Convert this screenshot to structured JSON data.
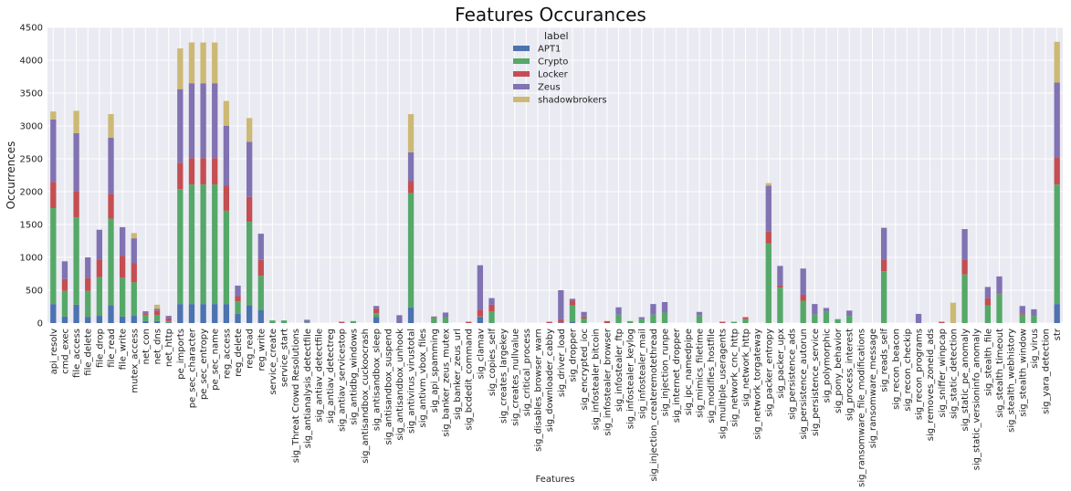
{
  "chart_data": {
    "type": "bar",
    "stacked": true,
    "title": "Features Occurances",
    "xlabel": "Features",
    "ylabel": "Occurrences",
    "ylim": [
      0,
      4500
    ],
    "yticks": [
      0,
      500,
      1000,
      1500,
      2000,
      2500,
      3000,
      3500,
      4000,
      4500
    ],
    "grid": true,
    "legend_title": "label",
    "legend_position": "upper-center",
    "categories": [
      "api_resolv",
      "cmd_exec",
      "file_access",
      "file_delete",
      "file_drop",
      "file_read",
      "file_write",
      "mutex_access",
      "net_con",
      "net_dns",
      "net_http",
      "pe_imports",
      "pe_sec_character",
      "pe_sec_entropy",
      "pe_sec_name",
      "reg_access",
      "reg_delete",
      "reg_read",
      "reg_write",
      "service_create",
      "service_start",
      "sig_Threat Crowd Resolutions",
      "sig_antianalysis_detectfile",
      "sig_antiav_detectfile",
      "sig_antiav_detectreg",
      "sig_antiav_servicestop",
      "sig_antidbg_windows",
      "sig_antisandbox_cuckoocrash",
      "sig_antisandbox_sleep",
      "sig_antisandbox_suspend",
      "sig_antisandbox_unhook",
      "sig_antivirus_virustotal",
      "sig_antivm_vbox_files",
      "sig_api_spamming",
      "sig_banker_zeus_mutex",
      "sig_banker_zeus_url",
      "sig_bcdedit_command",
      "sig_clamav",
      "sig_copies_self",
      "sig_creates_largekey",
      "sig_creates_nullvalue",
      "sig_critical_process",
      "sig_disables_browser_warn",
      "sig_downloader_cabby",
      "sig_driver_load",
      "sig_dropper",
      "sig_encrypted_ioc",
      "sig_infostealer_bitcoin",
      "sig_infostealer_browser",
      "sig_infostealer_ftp",
      "sig_infostealer_keylog",
      "sig_infostealer_mail",
      "sig_injection_createremotethread",
      "sig_injection_runpe",
      "sig_internet_dropper",
      "sig_ipc_namedpipe",
      "sig_mimics_filetime",
      "sig_modifies_hostfile",
      "sig_multiple_useragents",
      "sig_network_cnc_http",
      "sig_network_http",
      "sig_network_torgateway",
      "sig_packer_entropy",
      "sig_packer_upx",
      "sig_persistence_ads",
      "sig_persistence_autorun",
      "sig_persistence_service",
      "sig_polymorphic",
      "sig_pony_behavior",
      "sig_process_interest",
      "sig_ransomware_file_modifications",
      "sig_ransomware_message",
      "sig_reads_self",
      "sig_recon_beacon",
      "sig_recon_checkip",
      "sig_recon_programs",
      "sig_removes_zoneid_ads",
      "sig_sniffer_winpcap",
      "sig_static_detection",
      "sig_static_pe_anomaly",
      "sig_static_versioninfo_anomaly",
      "sig_stealth_file",
      "sig_stealth_timeout",
      "sig_stealth_webhistory",
      "sig_stealth_window",
      "sig_virus",
      "sig_yara_detection",
      "str"
    ],
    "series": [
      {
        "name": "APT1",
        "color": "#4c72b0",
        "values": [
          290,
          100,
          280,
          90,
          110,
          270,
          100,
          110,
          30,
          30,
          10,
          290,
          290,
          290,
          290,
          290,
          140,
          270,
          200,
          0,
          0,
          0,
          0,
          0,
          0,
          0,
          0,
          0,
          90,
          0,
          0,
          240,
          0,
          0,
          0,
          0,
          0,
          90,
          0,
          0,
          0,
          0,
          0,
          0,
          10,
          20,
          0,
          0,
          0,
          0,
          0,
          0,
          0,
          0,
          0,
          0,
          0,
          0,
          0,
          0,
          0,
          0,
          0,
          0,
          0,
          0,
          0,
          0,
          0,
          0,
          0,
          0,
          0,
          0,
          0,
          0,
          0,
          0,
          0,
          0,
          0,
          0,
          0,
          0,
          0,
          0,
          0,
          290
        ]
      },
      {
        "name": "Crypto",
        "color": "#55a868",
        "values": [
          1460,
          390,
          1330,
          400,
          590,
          1320,
          590,
          510,
          90,
          90,
          20,
          1750,
          1820,
          1820,
          1820,
          1420,
          190,
          1270,
          520,
          40,
          40,
          0,
          10,
          0,
          0,
          0,
          30,
          0,
          60,
          0,
          0,
          1740,
          0,
          80,
          90,
          0,
          0,
          10,
          180,
          0,
          0,
          0,
          0,
          0,
          0,
          250,
          70,
          0,
          0,
          130,
          30,
          60,
          130,
          160,
          0,
          0,
          120,
          0,
          0,
          20,
          60,
          0,
          1210,
          540,
          0,
          340,
          130,
          170,
          60,
          110,
          0,
          0,
          790,
          0,
          0,
          0,
          0,
          0,
          0,
          740,
          0,
          270,
          440,
          0,
          130,
          110,
          0,
          1820
        ]
      },
      {
        "name": "Locker",
        "color": "#c44e52",
        "values": [
          400,
          180,
          400,
          200,
          270,
          380,
          330,
          290,
          30,
          70,
          40,
          400,
          400,
          400,
          400,
          380,
          80,
          380,
          240,
          0,
          0,
          0,
          0,
          0,
          0,
          20,
          0,
          0,
          70,
          0,
          0,
          180,
          0,
          10,
          0,
          0,
          20,
          100,
          100,
          0,
          0,
          0,
          0,
          20,
          50,
          70,
          30,
          0,
          30,
          0,
          0,
          0,
          0,
          0,
          0,
          0,
          0,
          0,
          20,
          0,
          30,
          0,
          180,
          30,
          0,
          90,
          0,
          0,
          0,
          0,
          0,
          0,
          180,
          0,
          0,
          0,
          0,
          20,
          0,
          230,
          0,
          110,
          10,
          0,
          20,
          0,
          0,
          410
        ]
      },
      {
        "name": "Zeus",
        "color": "#8172b2",
        "values": [
          950,
          270,
          880,
          310,
          450,
          850,
          440,
          380,
          30,
          30,
          40,
          1120,
          1140,
          1140,
          1140,
          910,
          160,
          840,
          400,
          0,
          0,
          0,
          40,
          0,
          0,
          0,
          0,
          0,
          40,
          0,
          120,
          440,
          0,
          10,
          70,
          0,
          0,
          680,
          100,
          0,
          0,
          0,
          0,
          0,
          440,
          30,
          70,
          0,
          0,
          110,
          0,
          30,
          160,
          160,
          0,
          0,
          50,
          0,
          0,
          0,
          0,
          0,
          700,
          300,
          0,
          400,
          160,
          60,
          0,
          80,
          0,
          0,
          480,
          0,
          0,
          140,
          0,
          0,
          0,
          460,
          0,
          170,
          260,
          0,
          110,
          100,
          0,
          1140
        ]
      },
      {
        "name": "shadowbrokers",
        "color": "#ccb974",
        "values": [
          120,
          0,
          340,
          0,
          0,
          360,
          0,
          80,
          0,
          60,
          0,
          620,
          620,
          620,
          620,
          380,
          0,
          360,
          0,
          0,
          0,
          0,
          0,
          0,
          0,
          0,
          0,
          0,
          0,
          0,
          0,
          580,
          0,
          0,
          0,
          0,
          0,
          0,
          0,
          0,
          0,
          0,
          0,
          0,
          0,
          0,
          0,
          0,
          0,
          0,
          0,
          0,
          0,
          0,
          0,
          0,
          0,
          0,
          0,
          0,
          0,
          0,
          40,
          0,
          0,
          0,
          0,
          0,
          0,
          0,
          0,
          0,
          0,
          0,
          0,
          0,
          0,
          0,
          310,
          0,
          0,
          0,
          0,
          0,
          0,
          0,
          0,
          620
        ]
      }
    ]
  }
}
